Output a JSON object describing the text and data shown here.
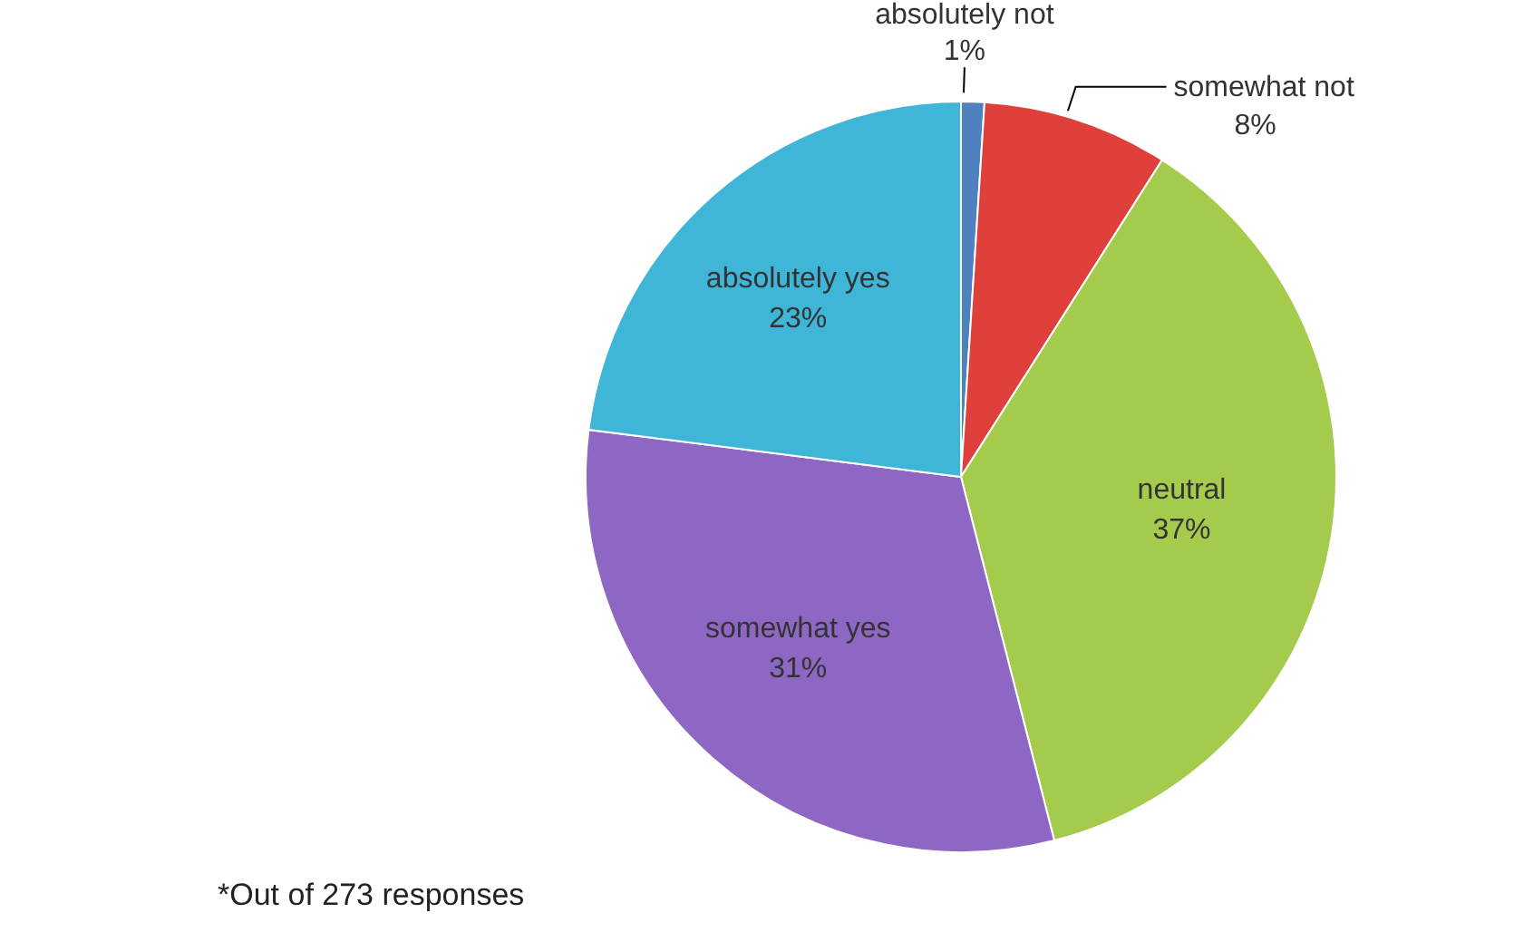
{
  "chart_data": {
    "type": "pie",
    "categories": [
      "absolutely not",
      "somewhat not",
      "neutral",
      "somewhat yes",
      "absolutely yes"
    ],
    "values": [
      1,
      8,
      37,
      31,
      23
    ],
    "colors": [
      "#4f81bd",
      "#e0403c",
      "#a4cb4c",
      "#8e67c4",
      "#3fb5d8"
    ],
    "value_labels": [
      "1%",
      "8%",
      "37%",
      "31%",
      "23%"
    ],
    "annotations": [
      "*Out of 273 responses"
    ]
  }
}
